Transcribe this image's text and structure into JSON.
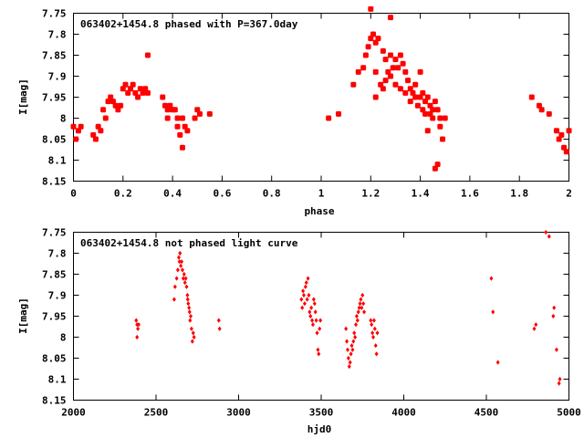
{
  "colors": {
    "points": "#ff0000",
    "axes": "#000000",
    "background": "#ffffff"
  },
  "chart_data": [
    {
      "type": "scatter",
      "title": "063402+1454.8 phased with P=367.0day",
      "xlabel": "phase",
      "ylabel": "I[mag]",
      "xlim": [
        0,
        2
      ],
      "ylim": [
        7.75,
        8.15
      ],
      "y_inverted": true,
      "grid": false,
      "x_ticks": [
        "0",
        "0.2",
        "0.4",
        "0.6",
        "0.8",
        "1",
        "1.2",
        "1.4",
        "1.6",
        "1.8",
        "2"
      ],
      "y_ticks": [
        "7.75",
        "7.8",
        "7.85",
        "7.9",
        "7.95",
        "8",
        "8.05",
        "8.1",
        "8.15"
      ],
      "marker": "filled-circle-large",
      "points": [
        [
          0.0,
          8.02
        ],
        [
          0.01,
          8.05
        ],
        [
          0.02,
          8.03
        ],
        [
          0.03,
          8.02
        ],
        [
          0.08,
          8.04
        ],
        [
          0.09,
          8.05
        ],
        [
          0.1,
          8.02
        ],
        [
          0.11,
          8.03
        ],
        [
          0.12,
          7.98
        ],
        [
          0.13,
          8.0
        ],
        [
          0.14,
          7.96
        ],
        [
          0.15,
          7.95
        ],
        [
          0.16,
          7.96
        ],
        [
          0.17,
          7.97
        ],
        [
          0.18,
          7.98
        ],
        [
          0.19,
          7.97
        ],
        [
          0.2,
          7.93
        ],
        [
          0.21,
          7.92
        ],
        [
          0.22,
          7.94
        ],
        [
          0.23,
          7.93
        ],
        [
          0.24,
          7.92
        ],
        [
          0.25,
          7.94
        ],
        [
          0.26,
          7.95
        ],
        [
          0.27,
          7.93
        ],
        [
          0.28,
          7.94
        ],
        [
          0.29,
          7.93
        ],
        [
          0.3,
          7.94
        ],
        [
          0.3,
          7.85
        ],
        [
          0.36,
          7.95
        ],
        [
          0.37,
          7.97
        ],
        [
          0.38,
          7.98
        ],
        [
          0.38,
          8.0
        ],
        [
          0.39,
          7.97
        ],
        [
          0.4,
          7.98
        ],
        [
          0.41,
          7.98
        ],
        [
          0.42,
          8.0
        ],
        [
          0.42,
          8.02
        ],
        [
          0.43,
          8.04
        ],
        [
          0.44,
          8.0
        ],
        [
          0.44,
          8.07
        ],
        [
          0.45,
          8.02
        ],
        [
          0.46,
          8.03
        ],
        [
          0.49,
          8.0
        ],
        [
          0.5,
          7.98
        ],
        [
          0.51,
          7.99
        ],
        [
          0.55,
          7.99
        ],
        [
          1.03,
          8.0
        ],
        [
          1.07,
          7.99
        ],
        [
          1.13,
          7.92
        ],
        [
          1.15,
          7.89
        ],
        [
          1.17,
          7.88
        ],
        [
          1.18,
          7.85
        ],
        [
          1.19,
          7.83
        ],
        [
          1.2,
          7.74
        ],
        [
          1.2,
          7.81
        ],
        [
          1.21,
          7.8
        ],
        [
          1.22,
          7.82
        ],
        [
          1.22,
          7.89
        ],
        [
          1.22,
          7.95
        ],
        [
          1.23,
          7.81
        ],
        [
          1.24,
          7.92
        ],
        [
          1.25,
          7.84
        ],
        [
          1.25,
          7.93
        ],
        [
          1.26,
          7.86
        ],
        [
          1.26,
          7.91
        ],
        [
          1.27,
          7.89
        ],
        [
          1.28,
          7.76
        ],
        [
          1.28,
          7.85
        ],
        [
          1.28,
          7.9
        ],
        [
          1.29,
          7.88
        ],
        [
          1.3,
          7.86
        ],
        [
          1.3,
          7.92
        ],
        [
          1.31,
          7.88
        ],
        [
          1.32,
          7.85
        ],
        [
          1.32,
          7.93
        ],
        [
          1.33,
          7.87
        ],
        [
          1.34,
          7.89
        ],
        [
          1.34,
          7.94
        ],
        [
          1.35,
          7.91
        ],
        [
          1.36,
          7.93
        ],
        [
          1.36,
          7.96
        ],
        [
          1.37,
          7.94
        ],
        [
          1.38,
          7.95
        ],
        [
          1.38,
          7.92
        ],
        [
          1.39,
          7.97
        ],
        [
          1.4,
          7.95
        ],
        [
          1.4,
          7.89
        ],
        [
          1.41,
          7.98
        ],
        [
          1.41,
          7.94
        ],
        [
          1.42,
          7.96
        ],
        [
          1.42,
          7.99
        ],
        [
          1.43,
          7.95
        ],
        [
          1.43,
          8.03
        ],
        [
          1.44,
          7.97
        ],
        [
          1.44,
          7.99
        ],
        [
          1.45,
          7.98
        ],
        [
          1.45,
          8.0
        ],
        [
          1.46,
          7.96
        ],
        [
          1.46,
          8.12
        ],
        [
          1.47,
          7.98
        ],
        [
          1.47,
          8.11
        ],
        [
          1.48,
          8.0
        ],
        [
          1.48,
          8.02
        ],
        [
          1.49,
          8.05
        ],
        [
          1.5,
          8.0
        ],
        [
          1.85,
          7.95
        ],
        [
          1.88,
          7.97
        ],
        [
          1.89,
          7.98
        ],
        [
          1.92,
          7.99
        ],
        [
          1.95,
          8.03
        ],
        [
          1.96,
          8.05
        ],
        [
          1.97,
          8.04
        ],
        [
          1.98,
          8.07
        ],
        [
          1.99,
          8.08
        ],
        [
          2.0,
          8.03
        ]
      ]
    },
    {
      "type": "scatter",
      "title": "063402+1454.8 not phased light curve",
      "xlabel": "hjd0",
      "ylabel": "I[mag]",
      "xlim": [
        2000,
        5000
      ],
      "ylim": [
        7.75,
        8.15
      ],
      "y_inverted": true,
      "grid": false,
      "x_ticks": [
        "2000",
        "2500",
        "3000",
        "3500",
        "4000",
        "4500",
        "5000"
      ],
      "y_ticks": [
        "7.75",
        "7.8",
        "7.85",
        "7.9",
        "7.95",
        "8",
        "8.05",
        "8.1",
        "8.15"
      ],
      "marker": "small-diamond",
      "points": [
        [
          2380,
          7.96
        ],
        [
          2385,
          7.97
        ],
        [
          2390,
          7.98
        ],
        [
          2395,
          7.97
        ],
        [
          2385,
          8.0
        ],
        [
          2610,
          7.91
        ],
        [
          2615,
          7.88
        ],
        [
          2625,
          7.86
        ],
        [
          2632,
          7.84
        ],
        [
          2638,
          7.81
        ],
        [
          2642,
          7.82
        ],
        [
          2645,
          7.8
        ],
        [
          2650,
          7.83
        ],
        [
          2655,
          7.82
        ],
        [
          2660,
          7.84
        ],
        [
          2665,
          7.86
        ],
        [
          2670,
          7.85
        ],
        [
          2675,
          7.87
        ],
        [
          2680,
          7.86
        ],
        [
          2685,
          7.88
        ],
        [
          2690,
          7.9
        ],
        [
          2692,
          7.91
        ],
        [
          2695,
          7.92
        ],
        [
          2700,
          7.93
        ],
        [
          2703,
          7.94
        ],
        [
          2706,
          7.96
        ],
        [
          2710,
          7.95
        ],
        [
          2715,
          7.98
        ],
        [
          2720,
          8.01
        ],
        [
          2725,
          7.99
        ],
        [
          2730,
          8.0
        ],
        [
          2880,
          7.96
        ],
        [
          2885,
          7.98
        ],
        [
          3380,
          7.91
        ],
        [
          3385,
          7.93
        ],
        [
          3390,
          7.89
        ],
        [
          3395,
          7.9
        ],
        [
          3400,
          7.92
        ],
        [
          3405,
          7.88
        ],
        [
          3410,
          7.87
        ],
        [
          3415,
          7.91
        ],
        [
          3420,
          7.86
        ],
        [
          3425,
          7.9
        ],
        [
          3430,
          7.94
        ],
        [
          3435,
          7.95
        ],
        [
          3440,
          7.93
        ],
        [
          3445,
          7.96
        ],
        [
          3450,
          7.97
        ],
        [
          3455,
          7.91
        ],
        [
          3460,
          7.92
        ],
        [
          3465,
          7.94
        ],
        [
          3470,
          7.96
        ],
        [
          3475,
          7.99
        ],
        [
          3480,
          8.03
        ],
        [
          3485,
          8.04
        ],
        [
          3490,
          7.98
        ],
        [
          3495,
          7.96
        ],
        [
          3650,
          7.98
        ],
        [
          3655,
          8.01
        ],
        [
          3660,
          8.03
        ],
        [
          3665,
          8.05
        ],
        [
          3670,
          8.07
        ],
        [
          3675,
          8.06
        ],
        [
          3680,
          8.04
        ],
        [
          3685,
          8.02
        ],
        [
          3690,
          8.03
        ],
        [
          3695,
          8.01
        ],
        [
          3700,
          7.99
        ],
        [
          3705,
          8.0
        ],
        [
          3710,
          7.97
        ],
        [
          3715,
          7.95
        ],
        [
          3720,
          7.96
        ],
        [
          3725,
          7.94
        ],
        [
          3730,
          7.93
        ],
        [
          3735,
          7.92
        ],
        [
          3740,
          7.91
        ],
        [
          3745,
          7.93
        ],
        [
          3750,
          7.9
        ],
        [
          3755,
          7.92
        ],
        [
          3760,
          7.94
        ],
        [
          3800,
          7.96
        ],
        [
          3805,
          7.97
        ],
        [
          3810,
          7.99
        ],
        [
          3815,
          8.0
        ],
        [
          3820,
          7.96
        ],
        [
          3825,
          7.98
        ],
        [
          3830,
          8.02
        ],
        [
          3835,
          8.04
        ],
        [
          3840,
          7.99
        ],
        [
          4530,
          7.86
        ],
        [
          4540,
          7.94
        ],
        [
          4570,
          8.06
        ],
        [
          4790,
          7.98
        ],
        [
          4800,
          7.97
        ],
        [
          4860,
          7.75
        ],
        [
          4880,
          7.76
        ],
        [
          4905,
          7.95
        ],
        [
          4910,
          7.93
        ],
        [
          4925,
          8.03
        ],
        [
          4940,
          8.11
        ],
        [
          4945,
          8.1
        ]
      ]
    }
  ]
}
